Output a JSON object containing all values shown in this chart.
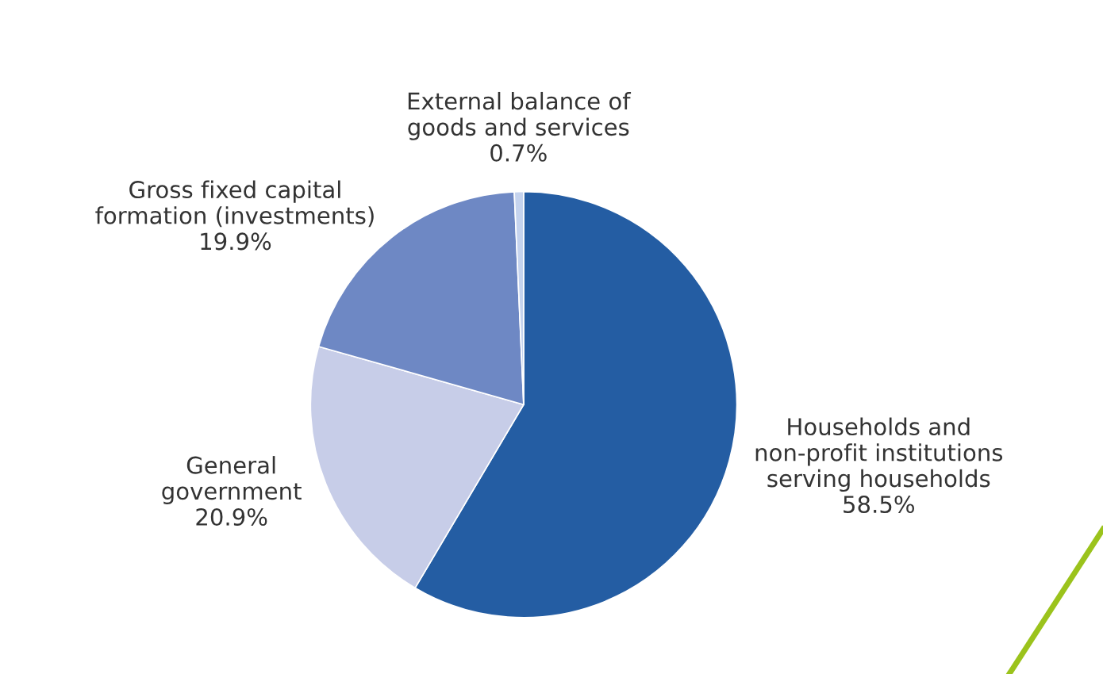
{
  "chart_data": {
    "type": "pie",
    "categories": [
      "Households and\nnon-profit institutions\nserving households",
      "General\ngovernment",
      "Gross fixed capital\nformation (investments)",
      "External balance of\ngoods and services"
    ],
    "values": [
      58.5,
      20.9,
      19.9,
      0.7
    ],
    "value_labels": [
      "58.5%",
      "20.9%",
      "19.9%",
      "0.7%"
    ],
    "colors": [
      "#245da3",
      "#c7cde8",
      "#6e88c4",
      "#c5d3ee"
    ]
  }
}
